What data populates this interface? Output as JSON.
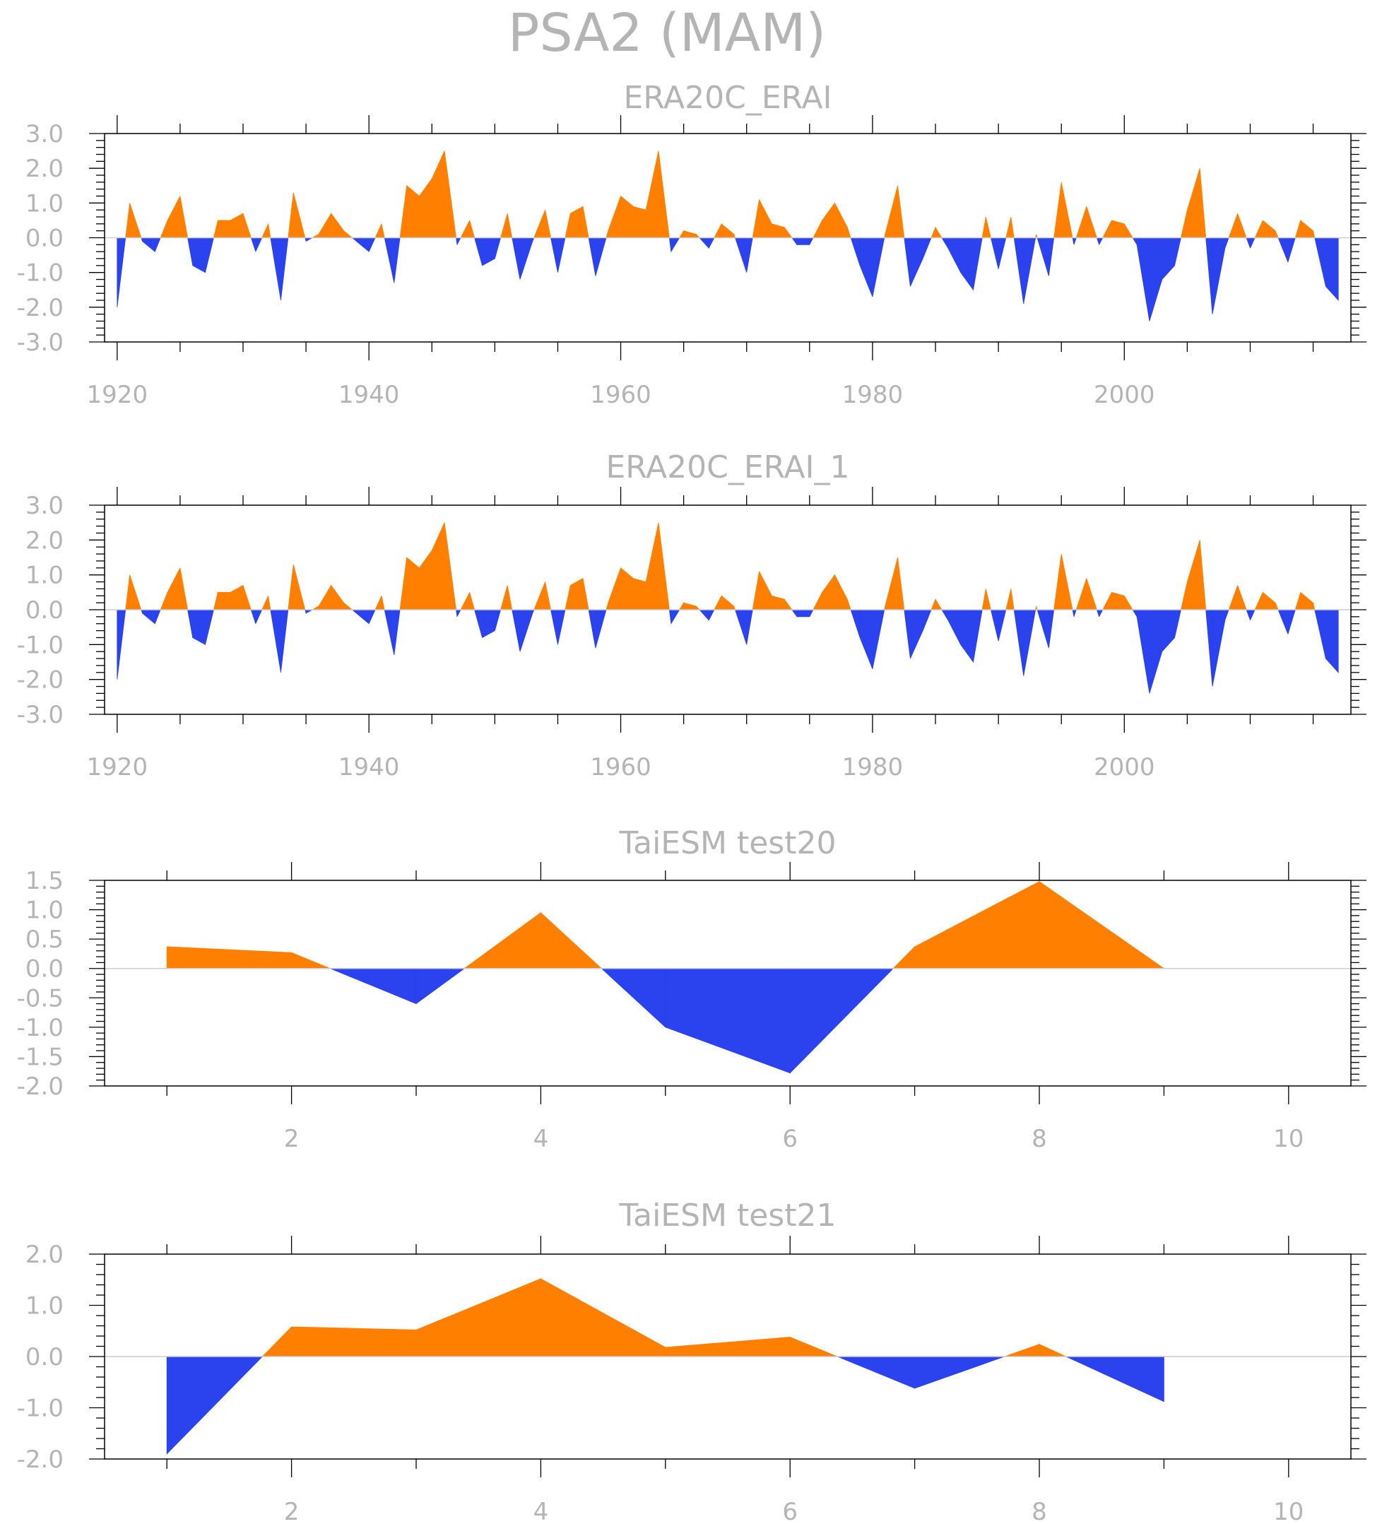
{
  "figure": {
    "title": "PSA2 (MAM)"
  },
  "colors": {
    "positive": "#ff8000",
    "negative": "#2b43ee",
    "frame": "#000000",
    "text": "#b4b4b4",
    "zero_line": "#cccccc"
  },
  "chart_data": [
    {
      "type": "area",
      "title": "ERA20C_ERAI",
      "xlabel": "",
      "ylabel": "",
      "xlim": [
        1919,
        2018
      ],
      "ylim": [
        -3.0,
        3.0
      ],
      "xticks": [
        1920,
        1940,
        1960,
        1980,
        2000
      ],
      "xtick_labels": [
        "1920",
        "1940",
        "1960",
        "1980",
        "2000"
      ],
      "yticks": [
        -3,
        -2,
        -1,
        0,
        1,
        2,
        3
      ],
      "ytick_labels": [
        "-3.0",
        "-2.0",
        "-1.0",
        "0.0",
        "1.0",
        "2.0",
        "3.0"
      ],
      "grid": false,
      "fill": "positive above zero, negative below zero",
      "x": [
        1920,
        1921,
        1922,
        1923,
        1924,
        1925,
        1926,
        1927,
        1928,
        1929,
        1930,
        1931,
        1932,
        1933,
        1934,
        1935,
        1936,
        1937,
        1938,
        1939,
        1940,
        1941,
        1942,
        1943,
        1944,
        1945,
        1946,
        1947,
        1948,
        1949,
        1950,
        1951,
        1952,
        1953,
        1954,
        1955,
        1956,
        1957,
        1958,
        1959,
        1960,
        1961,
        1962,
        1963,
        1964,
        1965,
        1966,
        1967,
        1968,
        1969,
        1970,
        1971,
        1972,
        1973,
        1974,
        1975,
        1976,
        1977,
        1978,
        1979,
        1980,
        1981,
        1982,
        1983,
        1984,
        1985,
        1986,
        1987,
        1988,
        1989,
        1990,
        1991,
        1992,
        1993,
        1994,
        1995,
        1996,
        1997,
        1998,
        1999,
        2000,
        2001,
        2002,
        2003,
        2004,
        2005,
        2006,
        2007,
        2008,
        2009,
        2010,
        2011,
        2012,
        2013,
        2014,
        2015,
        2016,
        2017
      ],
      "values": [
        -2.0,
        1.0,
        -0.1,
        -0.4,
        0.5,
        1.2,
        -0.8,
        -1.0,
        0.5,
        0.5,
        0.7,
        -0.4,
        0.4,
        -1.8,
        1.3,
        -0.1,
        0.1,
        0.7,
        0.2,
        -0.1,
        -0.4,
        0.4,
        -1.3,
        1.5,
        1.2,
        1.7,
        2.5,
        -0.2,
        0.5,
        -0.8,
        -0.6,
        0.7,
        -1.2,
        -0.1,
        0.8,
        -1.0,
        0.7,
        0.9,
        -1.1,
        0.2,
        1.2,
        0.9,
        0.8,
        2.5,
        -0.4,
        0.2,
        0.1,
        -0.3,
        0.4,
        0.1,
        -1.0,
        1.1,
        0.4,
        0.3,
        -0.2,
        -0.2,
        0.5,
        1.0,
        0.3,
        -0.8,
        -1.7,
        0.1,
        1.5,
        -1.4,
        -0.6,
        0.3,
        -0.3,
        -1.0,
        -1.5,
        0.6,
        -0.9,
        0.6,
        -1.9,
        0.1,
        -1.1,
        1.6,
        -0.2,
        0.9,
        -0.2,
        0.5,
        0.4,
        -0.2,
        -2.4,
        -1.2,
        -0.8,
        0.8,
        2.0,
        -2.2,
        -0.3,
        0.7,
        -0.3,
        0.5,
        0.2,
        -0.7,
        0.5,
        0.2,
        -1.4,
        -1.8
      ]
    },
    {
      "type": "area",
      "title": "ERA20C_ERAI_1",
      "xlabel": "",
      "ylabel": "",
      "xlim": [
        1919,
        2018
      ],
      "ylim": [
        -3.0,
        3.0
      ],
      "xticks": [
        1920,
        1940,
        1960,
        1980,
        2000
      ],
      "xtick_labels": [
        "1920",
        "1940",
        "1960",
        "1980",
        "2000"
      ],
      "yticks": [
        -3,
        -2,
        -1,
        0,
        1,
        2,
        3
      ],
      "ytick_labels": [
        "-3.0",
        "-2.0",
        "-1.0",
        "0.0",
        "1.0",
        "2.0",
        "3.0"
      ],
      "grid": false,
      "fill": "positive above zero, negative below zero",
      "x": [
        1920,
        1921,
        1922,
        1923,
        1924,
        1925,
        1926,
        1927,
        1928,
        1929,
        1930,
        1931,
        1932,
        1933,
        1934,
        1935,
        1936,
        1937,
        1938,
        1939,
        1940,
        1941,
        1942,
        1943,
        1944,
        1945,
        1946,
        1947,
        1948,
        1949,
        1950,
        1951,
        1952,
        1953,
        1954,
        1955,
        1956,
        1957,
        1958,
        1959,
        1960,
        1961,
        1962,
        1963,
        1964,
        1965,
        1966,
        1967,
        1968,
        1969,
        1970,
        1971,
        1972,
        1973,
        1974,
        1975,
        1976,
        1977,
        1978,
        1979,
        1980,
        1981,
        1982,
        1983,
        1984,
        1985,
        1986,
        1987,
        1988,
        1989,
        1990,
        1991,
        1992,
        1993,
        1994,
        1995,
        1996,
        1997,
        1998,
        1999,
        2000,
        2001,
        2002,
        2003,
        2004,
        2005,
        2006,
        2007,
        2008,
        2009,
        2010,
        2011,
        2012,
        2013,
        2014,
        2015,
        2016,
        2017
      ],
      "values": [
        -2.0,
        1.0,
        -0.1,
        -0.4,
        0.5,
        1.2,
        -0.8,
        -1.0,
        0.5,
        0.5,
        0.7,
        -0.4,
        0.4,
        -1.8,
        1.3,
        -0.1,
        0.1,
        0.7,
        0.2,
        -0.1,
        -0.4,
        0.4,
        -1.3,
        1.5,
        1.2,
        1.7,
        2.5,
        -0.2,
        0.5,
        -0.8,
        -0.6,
        0.7,
        -1.2,
        -0.1,
        0.8,
        -1.0,
        0.7,
        0.9,
        -1.1,
        0.2,
        1.2,
        0.9,
        0.8,
        2.5,
        -0.4,
        0.2,
        0.1,
        -0.3,
        0.4,
        0.1,
        -1.0,
        1.1,
        0.4,
        0.3,
        -0.2,
        -0.2,
        0.5,
        1.0,
        0.3,
        -0.8,
        -1.7,
        0.1,
        1.5,
        -1.4,
        -0.6,
        0.3,
        -0.3,
        -1.0,
        -1.5,
        0.6,
        -0.9,
        0.6,
        -1.9,
        0.1,
        -1.1,
        1.6,
        -0.2,
        0.9,
        -0.2,
        0.5,
        0.4,
        -0.2,
        -2.4,
        -1.2,
        -0.8,
        0.8,
        2.0,
        -2.2,
        -0.3,
        0.7,
        -0.3,
        0.5,
        0.2,
        -0.7,
        0.5,
        0.2,
        -1.4,
        -1.8
      ]
    },
    {
      "type": "area",
      "title": "TaiESM test20",
      "xlabel": "",
      "ylabel": "",
      "xlim": [
        0.5,
        10.5
      ],
      "ylim": [
        -2.0,
        1.5
      ],
      "xticks": [
        2,
        4,
        6,
        8,
        10
      ],
      "xtick_labels": [
        "2",
        "4",
        "6",
        "8",
        "10"
      ],
      "yticks": [
        -2.0,
        -1.5,
        -1.0,
        -0.5,
        0.0,
        0.5,
        1.0,
        1.5
      ],
      "ytick_labels": [
        "-2.0",
        "-1.5",
        "-1.0",
        "-0.5",
        "0.0",
        "0.5",
        "1.0",
        "1.5"
      ],
      "grid": false,
      "fill": "positive above zero, negative below zero",
      "x": [
        1,
        2,
        3,
        4,
        5,
        6,
        7,
        8,
        9
      ],
      "values": [
        0.37,
        0.27,
        -0.6,
        0.95,
        -1.0,
        -1.78,
        0.37,
        1.48,
        0.0
      ]
    },
    {
      "type": "area",
      "title": "TaiESM test21",
      "xlabel": "",
      "ylabel": "",
      "xlim": [
        0.5,
        10.5
      ],
      "ylim": [
        -2.0,
        2.0
      ],
      "xticks": [
        2,
        4,
        6,
        8,
        10
      ],
      "xtick_labels": [
        "2",
        "4",
        "6",
        "8",
        "10"
      ],
      "yticks": [
        -2,
        -1,
        0,
        1,
        2
      ],
      "ytick_labels": [
        "-2.0",
        "-1.0",
        "0.0",
        "1.0",
        "2.0"
      ],
      "grid": false,
      "fill": "positive above zero, negative below zero",
      "x": [
        1,
        2,
        3,
        4,
        5,
        6,
        7,
        8,
        9
      ],
      "values": [
        -1.9,
        0.58,
        0.52,
        1.52,
        0.18,
        0.38,
        -0.62,
        0.24,
        -0.88
      ]
    }
  ]
}
